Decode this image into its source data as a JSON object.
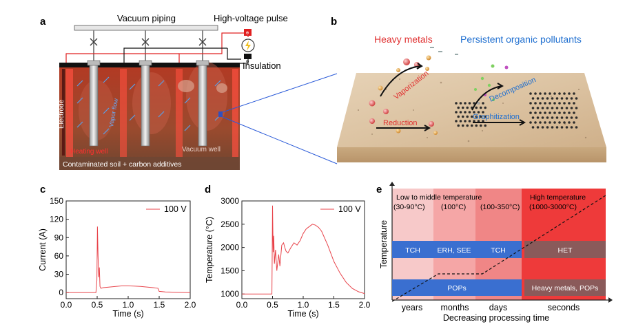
{
  "panels": {
    "a": "a",
    "b": "b",
    "c": "c",
    "d": "d",
    "e": "e"
  },
  "panel_a": {
    "vacuum_piping": "Vacuum piping",
    "hv_pulse": "High-voltage pulse",
    "insulation": "Insulation",
    "electrode": "Electrode",
    "vapor_flow": "Vapor flow",
    "heating_well": "Heating well",
    "vacuum_well": "Vacuum well",
    "soil": "Contaminated soil + carbon additives",
    "plus_sign": "⊕",
    "minus_sign": "⊖",
    "colors": {
      "wire": "#e02020",
      "soil": "#8b4a2c",
      "heat": "#d93a2a"
    }
  },
  "panel_b": {
    "heavy_metals": "Heavy metals",
    "pops": "Persistent organic pollutants",
    "vaporization": "Vaporization",
    "decomposition": "Decomposition",
    "reduction": "Reduction",
    "graphitization": "Graphitization",
    "colors": {
      "red_text": "#e03030",
      "blue_text": "#1f6fd0"
    }
  },
  "chart_data": [
    {
      "id": "c",
      "type": "line",
      "title": "",
      "xlabel": "Time (s)",
      "ylabel": "Current (A)",
      "xlim": [
        0.0,
        2.0
      ],
      "ylim": [
        -10,
        150
      ],
      "xticks": [
        0.0,
        0.5,
        1.0,
        1.5,
        2.0
      ],
      "xtick_labels": [
        "0.0",
        "0.5",
        "1.0",
        "1.5",
        "2.0"
      ],
      "yticks": [
        0,
        30,
        60,
        90,
        120,
        150
      ],
      "ytick_labels": [
        "0",
        "30",
        "60",
        "90",
        "120",
        "150"
      ],
      "legend": "top-right",
      "series": [
        {
          "name": "100 V",
          "color": "#e8434a",
          "x": [
            0.0,
            0.48,
            0.495,
            0.505,
            0.515,
            0.525,
            0.535,
            0.545,
            0.56,
            0.6,
            0.7,
            0.8,
            0.9,
            1.0,
            1.1,
            1.2,
            1.3,
            1.4,
            1.48,
            1.5,
            1.6,
            1.8,
            2.0
          ],
          "y": [
            0,
            0,
            20,
            108,
            60,
            25,
            41,
            10,
            7,
            8,
            9,
            10,
            11,
            11,
            10.5,
            10,
            9,
            8,
            7,
            2,
            1,
            0.5,
            0
          ]
        }
      ]
    },
    {
      "id": "d",
      "type": "line",
      "title": "",
      "xlabel": "Time (s)",
      "ylabel": "Temperature (°C)",
      "xlim": [
        0.0,
        2.0
      ],
      "ylim": [
        900,
        3000
      ],
      "xticks": [
        0.0,
        0.5,
        1.0,
        1.5,
        2.0
      ],
      "xtick_labels": [
        "0.0",
        "0.5",
        "1.0",
        "1.5",
        "2.0"
      ],
      "yticks": [
        1000,
        1500,
        2000,
        2500,
        3000
      ],
      "ytick_labels": [
        "1000",
        "1500",
        "2000",
        "2500",
        "3000"
      ],
      "legend": "top-right",
      "series": [
        {
          "name": "100 V",
          "color": "#e8434a",
          "x": [
            0.0,
            0.49,
            0.5,
            0.51,
            0.52,
            0.53,
            0.55,
            0.57,
            0.6,
            0.62,
            0.65,
            0.68,
            0.7,
            0.72,
            0.75,
            0.8,
            0.85,
            0.9,
            0.95,
            1.0,
            1.05,
            1.1,
            1.15,
            1.2,
            1.25,
            1.3,
            1.4,
            1.5,
            1.6,
            1.7,
            1.8,
            1.9,
            2.0
          ],
          "y": [
            1000,
            1000,
            2900,
            1900,
            2250,
            1650,
            1950,
            1500,
            1850,
            1600,
            2050,
            2100,
            2000,
            1920,
            1880,
            2000,
            2100,
            2050,
            2150,
            2300,
            2400,
            2450,
            2500,
            2480,
            2430,
            2350,
            2050,
            1700,
            1450,
            1250,
            1120,
            1050,
            1010
          ]
        }
      ]
    },
    {
      "id": "e",
      "type": "diagram",
      "ylabel": "Temperature",
      "xlabel": "Decreasing processing time",
      "low_header": "Low to middle temperature",
      "high_header": "High temperature",
      "bands": [
        {
          "temp": "(30-90°C)",
          "time": "years",
          "color": "#f7c9c9"
        },
        {
          "temp": "(100°C)",
          "time": "months",
          "color": "#f5a6a6"
        },
        {
          "temp": "(100-350°C)",
          "time": "days",
          "color": "#f08686"
        },
        {
          "temp": "(1000-3000°C)",
          "time": "seconds",
          "color": "#ee3a3a"
        }
      ],
      "methods": [
        "TCH",
        "ERH, SEE",
        "TCH",
        "HET"
      ],
      "targets": [
        "POPs",
        "Heavy metals, POPs"
      ],
      "colors": {
        "blue_bar": "#3a6fd0",
        "gray_bar": "#8a5a5a"
      }
    }
  ]
}
